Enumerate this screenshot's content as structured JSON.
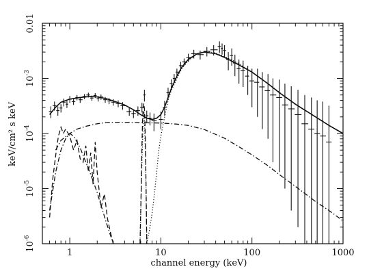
{
  "chart_data": {
    "type": "line",
    "xlabel": "channel energy (keV)",
    "ylabel": "keV/cm² s keV",
    "xscale": "log",
    "yscale": "log",
    "xlim": [
      0.5,
      1000
    ],
    "ylim": [
      1e-06,
      0.01
    ],
    "grid": false,
    "legend": "none",
    "x_ticks": [
      {
        "value": 1,
        "label": "1"
      },
      {
        "value": 10,
        "label": "10"
      },
      {
        "value": 100,
        "label": "100"
      },
      {
        "value": 1000,
        "label": "1000"
      }
    ],
    "y_ticks": [
      {
        "value": 1e-06,
        "base": "10",
        "exp": "-6",
        "label": ""
      },
      {
        "value": 1e-05,
        "base": "10",
        "exp": "-5",
        "label": ""
      },
      {
        "value": 0.0001,
        "base": "10",
        "exp": "-4",
        "label": ""
      },
      {
        "value": 0.001,
        "base": "10",
        "exp": "-3",
        "label": ""
      },
      {
        "value": 0.01,
        "base": "",
        "exp": "",
        "label": "0.01"
      }
    ],
    "series": [
      {
        "style": "solid",
        "color": "#111111",
        "x": [
          0.6,
          0.7,
          0.8,
          1.0,
          1.3,
          1.7,
          2.0,
          2.5,
          3.0,
          4.0,
          5.0,
          6.0,
          7.0,
          8.0,
          9.0,
          10.0,
          11.0,
          12.0,
          13.0,
          15.0,
          17.0,
          20.0,
          25.0,
          30.0,
          40.0,
          50.0,
          70.0,
          100.0,
          150.0,
          200.0,
          300.0,
          500.0,
          700.0,
          1000.0
        ],
        "y": [
          0.00022,
          0.0003,
          0.00037,
          0.00042,
          0.00045,
          0.00047,
          0.00046,
          0.00043,
          0.00039,
          0.00033,
          0.00027,
          0.00022,
          0.00019,
          0.00018,
          0.00019,
          0.00022,
          0.0003,
          0.00045,
          0.00065,
          0.0011,
          0.0016,
          0.0022,
          0.0028,
          0.003,
          0.0028,
          0.0024,
          0.0018,
          0.0013,
          0.0008,
          0.00055,
          0.00034,
          0.0002,
          0.00014,
          0.0001
        ]
      },
      {
        "style": "dotted",
        "color": "#111111",
        "x": [
          7.0,
          7.5,
          8.0,
          8.5,
          9.0,
          9.5,
          10.0,
          11.0,
          12.0,
          13.0,
          15.0,
          17.0,
          20.0,
          25.0,
          30.0,
          40.0,
          50.0,
          70.0,
          100.0,
          150.0,
          200.0,
          300.0,
          500.0,
          700.0,
          1000.0
        ],
        "y": [
          1e-06,
          1.8e-06,
          3.5e-06,
          8e-06,
          2e-05,
          5e-05,
          9e-05,
          0.0002,
          0.0004,
          0.0006,
          0.001,
          0.0015,
          0.0021,
          0.0028,
          0.0031,
          0.0029,
          0.0025,
          0.0019,
          0.0013,
          0.0008,
          0.00056,
          0.00034,
          0.0002,
          0.00014,
          0.0001
        ]
      },
      {
        "style": "dash-dot",
        "color": "#111111",
        "x": [
          0.7,
          0.8,
          1.0,
          1.2,
          1.5,
          2.0,
          2.5,
          3.0,
          4.0,
          5.0,
          6.0,
          8.0,
          10.0,
          15.0,
          20.0,
          30.0,
          50.0,
          70.0,
          100.0,
          150.0,
          200.0,
          300.0,
          500.0,
          700.0,
          1000.0
        ],
        "y": [
          5e-05,
          7.5e-05,
          0.0001,
          0.00012,
          0.000135,
          0.00015,
          0.000158,
          0.00016,
          0.00016,
          0.000158,
          0.000157,
          0.000156,
          0.000155,
          0.000148,
          0.00014,
          0.000118,
          8.2e-05,
          5.9e-05,
          4.1e-05,
          2.6e-05,
          1.8e-05,
          1.1e-05,
          5.8e-06,
          4e-06,
          2.6e-06
        ]
      },
      {
        "style": "dash-dot",
        "color": "#111111",
        "x": [
          0.6,
          0.7,
          0.8,
          0.9,
          1.0,
          1.1,
          1.2,
          1.3,
          1.5,
          1.7,
          2.0,
          2.2,
          2.5,
          3.0
        ],
        "y": [
          4e-06,
          2e-05,
          5e-05,
          8e-05,
          0.0001,
          9e-05,
          7e-05,
          5.5e-05,
          3e-05,
          1.8e-05,
          8.5e-06,
          5e-06,
          2.5e-06,
          1e-06
        ]
      },
      {
        "style": "dashed",
        "color": "#111111",
        "x": [
          0.6,
          0.65,
          0.7,
          0.75,
          0.8,
          0.85,
          0.9,
          1.0,
          1.1,
          1.2,
          1.3,
          1.4,
          1.5,
          1.6,
          1.7,
          1.8,
          1.9,
          2.0,
          2.2,
          2.4,
          2.6,
          2.8,
          3.0
        ],
        "y": [
          3e-06,
          1.5e-05,
          4e-05,
          9e-05,
          0.00013,
          0.0001,
          0.00012,
          9e-05,
          5e-05,
          7.5e-05,
          3.5e-05,
          3e-05,
          6e-05,
          2e-05,
          4.5e-05,
          1.2e-05,
          7e-05,
          2e-05,
          4.5e-06,
          8e-06,
          2.8e-06,
          1.6e-06,
          1e-06
        ]
      },
      {
        "style": "dashed",
        "color": "#111111",
        "x": [
          5.9,
          6.1,
          6.2,
          6.3,
          6.4,
          6.5,
          6.6,
          6.7,
          6.8,
          6.9,
          7.0
        ],
        "y": [
          1e-06,
          1.2e-05,
          6e-05,
          0.00018,
          0.0003,
          0.00035,
          0.00028,
          0.00014,
          4e-05,
          8e-06,
          1e-06
        ]
      },
      {
        "style": "dotted",
        "color": "#111111",
        "x": [
          5.9,
          6.2,
          6.4,
          6.5,
          6.6,
          6.8,
          7.0
        ],
        "y": [
          1e-06,
          3e-05,
          0.00018,
          0.00025,
          0.00018,
          3e-05,
          1e-06
        ]
      }
    ],
    "data_points": {
      "x": [
        0.62,
        0.68,
        0.74,
        0.8,
        0.86,
        0.93,
        1.0,
        1.1,
        1.2,
        1.3,
        1.45,
        1.6,
        1.75,
        1.9,
        2.05,
        2.2,
        2.45,
        2.7,
        3.0,
        3.4,
        3.8,
        4.5,
        5.0,
        5.6,
        6.2,
        6.6,
        7.0,
        7.6,
        8.4,
        10.0,
        11.0,
        12.0,
        13.0,
        14.0,
        15.0,
        16.5,
        18.0,
        20.0,
        23.0,
        27.0,
        32.0,
        38.0,
        44.0,
        47.0,
        50.0,
        55.0,
        60.0,
        65.0,
        72.0,
        80.0,
        90.0,
        100.0,
        115.0,
        130.0,
        150.0,
        170.0,
        200.0,
        230.0,
        270.0,
        320.0,
        380.0,
        450.0,
        520.0,
        600.0,
        700.0
      ],
      "y": [
        0.00025,
        0.00032,
        0.00026,
        0.00029,
        0.00037,
        0.00034,
        0.00042,
        0.00038,
        0.00045,
        0.00041,
        0.00047,
        0.0005,
        0.00044,
        0.00049,
        0.00043,
        0.00046,
        0.00041,
        0.00039,
        0.00037,
        0.00035,
        0.00032,
        0.00025,
        0.00023,
        0.00026,
        0.0003,
        0.0005,
        0.00021,
        0.00019,
        0.00017,
        0.00018,
        0.0003,
        0.00055,
        0.0008,
        0.001,
        0.0013,
        0.0017,
        0.002,
        0.0024,
        0.0028,
        0.0027,
        0.0031,
        0.0033,
        0.0038,
        0.0035,
        0.0032,
        0.0022,
        0.0026,
        0.0019,
        0.0015,
        0.0014,
        0.0011,
        0.0009,
        0.00085,
        0.0007,
        0.0006,
        0.0005,
        0.00045,
        0.00033,
        0.00028,
        0.00022,
        0.00015,
        0.00012,
        0.0001,
        9e-05,
        7e-05
      ],
      "ylo": [
        0.00019,
        0.00026,
        0.00021,
        0.00024,
        0.00031,
        0.00029,
        0.00036,
        0.00033,
        0.0004,
        0.00036,
        0.00042,
        0.00045,
        0.00039,
        0.00044,
        0.00038,
        0.00041,
        0.00036,
        0.00034,
        0.00032,
        0.0003,
        0.00027,
        0.00021,
        0.00019,
        0.00021,
        0.00024,
        0.00038,
        0.00016,
        0.00014,
        0.00011,
        0.00012,
        0.00021,
        0.00042,
        0.00064,
        0.00082,
        0.0011,
        0.0014,
        0.0017,
        0.002,
        0.0023,
        0.0022,
        0.0025,
        0.0026,
        0.0029,
        0.0027,
        0.0024,
        0.0014,
        0.0017,
        0.0011,
        0.0008,
        0.0007,
        0.0005,
        0.0003,
        0.0002,
        0.00012,
        8e-05,
        3e-05,
        2e-05,
        1e-05,
        4e-06,
        2e-06,
        1e-06,
        1e-06,
        1e-06,
        1e-06,
        1e-06
      ],
      "yhi": [
        0.00031,
        0.00038,
        0.00031,
        0.00034,
        0.00043,
        0.00039,
        0.00048,
        0.00043,
        0.0005,
        0.00046,
        0.00052,
        0.00055,
        0.00049,
        0.00054,
        0.00048,
        0.00051,
        0.00046,
        0.00044,
        0.00042,
        0.0004,
        0.00037,
        0.00029,
        0.00027,
        0.00031,
        0.00036,
        0.00062,
        0.00026,
        0.00024,
        0.00023,
        0.00025,
        0.00039,
        0.00068,
        0.00096,
        0.0012,
        0.0015,
        0.002,
        0.0023,
        0.0028,
        0.0033,
        0.0032,
        0.0037,
        0.004,
        0.0047,
        0.0043,
        0.004,
        0.003,
        0.0035,
        0.0027,
        0.0022,
        0.0021,
        0.0017,
        0.0015,
        0.0015,
        0.0013,
        0.0012,
        0.001,
        0.00095,
        0.0008,
        0.00072,
        0.00062,
        0.0005,
        0.00045,
        0.0004,
        0.00038,
        0.00032
      ],
      "xlo": [
        0.59,
        0.65,
        0.71,
        0.77,
        0.83,
        0.9,
        0.96,
        1.05,
        1.15,
        1.25,
        1.38,
        1.52,
        1.67,
        1.82,
        1.97,
        2.12,
        2.33,
        2.58,
        2.85,
        3.2,
        3.6,
        4.2,
        4.75,
        5.3,
        5.9,
        6.4,
        6.8,
        7.3,
        7.9,
        9.5,
        10.5,
        11.5,
        12.5,
        13.5,
        14.5,
        15.8,
        17.2,
        19.0,
        21.5,
        25.0,
        29.5,
        35.0,
        42.0,
        45.5,
        48.0,
        52.0,
        57.0,
        62.0,
        68.0,
        75.0,
        84.0,
        93.0,
        106.0,
        120.0,
        138.0,
        158.0,
        185.0,
        214.0,
        250.0,
        295.0,
        350.0,
        415.0,
        485.0,
        560.0,
        650.0
      ],
      "xhi": [
        0.65,
        0.71,
        0.77,
        0.83,
        0.9,
        0.96,
        1.05,
        1.15,
        1.25,
        1.38,
        1.52,
        1.67,
        1.82,
        1.97,
        2.12,
        2.33,
        2.58,
        2.85,
        3.2,
        3.6,
        4.2,
        4.75,
        5.3,
        5.9,
        6.4,
        6.8,
        7.3,
        7.9,
        9.0,
        10.5,
        11.5,
        12.5,
        13.5,
        14.5,
        15.8,
        17.2,
        19.0,
        21.5,
        25.0,
        29.5,
        35.0,
        42.0,
        45.5,
        48.0,
        52.0,
        57.0,
        62.0,
        68.0,
        75.0,
        84.0,
        93.0,
        106.0,
        120.0,
        138.0,
        158.0,
        185.0,
        214.0,
        250.0,
        295.0,
        350.0,
        415.0,
        485.0,
        560.0,
        650.0,
        750.0
      ]
    }
  }
}
